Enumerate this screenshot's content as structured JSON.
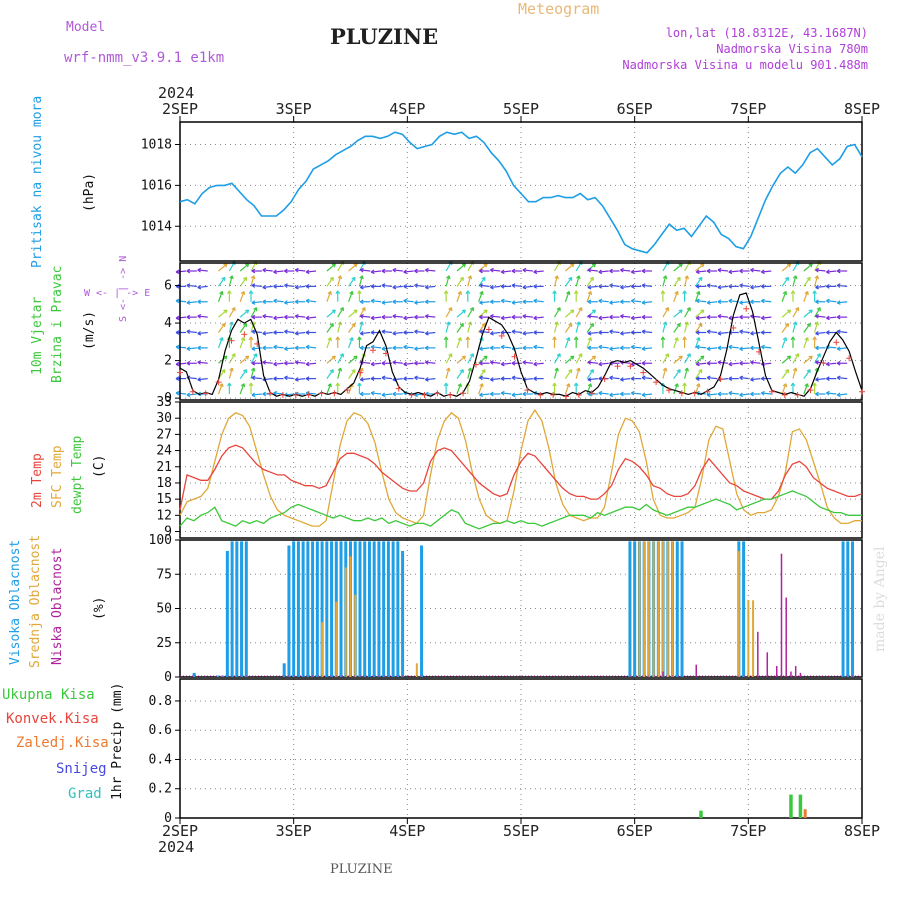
{
  "header": {
    "model_label": "Model",
    "model_name": "wrf-nmm_v3.9.1 e1km",
    "title": "PLUZINE",
    "product": "Meteogram",
    "coords": "lon,lat (18.8312E, 43.1687N)",
    "altitude": "Nadmorska Visina 780m",
    "model_altitude": "Nadmorska Visina u modelu 901.488m"
  },
  "footer": {
    "station": "PLUZINE"
  },
  "watermark": "made by Angel",
  "colors": {
    "pressure": "#1e9ee6",
    "t2m": "#e8453c",
    "sfc": "#e0a838",
    "dewpt": "#3cc83c",
    "high_cloud": "#1e9ee6",
    "mid_cloud": "#e0a838",
    "low_cloud": "#b0229c",
    "model_text": "#b05ad8",
    "header_text": "#b040d8",
    "product_text": "#e8b878"
  },
  "time_axis": {
    "year": "2024",
    "days": [
      "2SEP",
      "3SEP",
      "4SEP",
      "5SEP",
      "6SEP",
      "7SEP",
      "8SEP"
    ]
  },
  "panel_labels": {
    "pressure": {
      "name": "Pritisak na nivou mora",
      "unit": "(hPa)"
    },
    "wind": {
      "line1": "10m Vjetar",
      "line2": "Brzina i Pravac",
      "unit": "(m/s)",
      "compass": "W <- | -> E",
      "compass_v": "S <- | -> N"
    },
    "temp": {
      "t2m": "2m Temp",
      "sfc": "SFC Temp",
      "dewpt": "dewpt Temp",
      "unit": "(C)"
    },
    "cloud": {
      "high": "Visoka Oblacnost",
      "mid": "Srednja Oblacnost",
      "low": "Niska Oblacnost",
      "unit": "(%)"
    },
    "precip": {
      "total": "Ukupna Kisa",
      "conv": "Konvek.Kisa",
      "frozen": "Zaledj.Kisa",
      "snow": "Snijeg",
      "hail": "Grad",
      "unit": "1hr Precip (mm)"
    }
  },
  "chart_data": [
    {
      "type": "line",
      "panel": "pressure",
      "yticks": [
        1014,
        1016,
        1018
      ],
      "ylim": [
        1012.3,
        1019.1
      ],
      "xlim": [
        0,
        144
      ],
      "series": [
        {
          "values": [
            1015.2,
            1015.3,
            1015.1,
            1015.6,
            1015.9,
            1016.0,
            1016.0,
            1016.1,
            1015.7,
            1015.3,
            1015.0,
            1014.5,
            1014.5,
            1014.5,
            1014.8,
            1015.2,
            1015.8,
            1016.2,
            1016.8,
            1017.0,
            1017.2,
            1017.5,
            1017.7,
            1017.9,
            1018.2,
            1018.4,
            1018.4,
            1018.3,
            1018.4,
            1018.6,
            1018.5,
            1018.1,
            1017.8,
            1017.9,
            1018.0,
            1018.4,
            1018.6,
            1018.5,
            1018.6,
            1018.3,
            1018.4,
            1018.1,
            1017.6,
            1017.2,
            1016.7,
            1016.0,
            1015.6,
            1015.2,
            1015.2,
            1015.4,
            1015.4,
            1015.5,
            1015.4,
            1015.4,
            1015.6,
            1015.3,
            1015.4,
            1015.0,
            1014.4,
            1013.8,
            1013.1,
            1012.9,
            1012.8,
            1012.7,
            1013.1,
            1013.6,
            1014.1,
            1013.8,
            1013.9,
            1013.5,
            1014.0,
            1014.5,
            1014.2,
            1013.6,
            1013.4,
            1013.0,
            1012.9,
            1013.5,
            1014.4,
            1015.3,
            1016.0,
            1016.6,
            1016.9,
            1016.6,
            1017.0,
            1017.6,
            1017.8,
            1017.4,
            1017.0,
            1017.3,
            1017.9,
            1018.0,
            1017.4
          ]
        }
      ]
    },
    {
      "type": "line",
      "panel": "wind",
      "yticks": [
        0,
        2,
        4,
        6
      ],
      "ylim": [
        -0.1,
        7.2
      ],
      "xlim": [
        0,
        144
      ],
      "series": [
        {
          "values": [
            1.6,
            1.4,
            0.4,
            0.2,
            0.3,
            0.2,
            1.0,
            2.5,
            3.6,
            4.2,
            4.0,
            4.2,
            3.4,
            1.2,
            0.3,
            0.1,
            0.2,
            0.1,
            0.2,
            0.1,
            0.2,
            0.1,
            0.3,
            0.2,
            0.3,
            0.2,
            0.5,
            0.8,
            1.6,
            2.8,
            3.0,
            3.6,
            2.8,
            1.4,
            0.6,
            0.3,
            0.2,
            0.3,
            0.2,
            0.1,
            0.3,
            0.1,
            0.2,
            0.1,
            0.3,
            0.9,
            2.1,
            3.4,
            4.3,
            4.1,
            3.9,
            3.4,
            2.6,
            1.4,
            0.5,
            0.3,
            0.2,
            0.3,
            0.2,
            0.2,
            0.1,
            0.3,
            0.2,
            0.4,
            0.3,
            0.6,
            1.2,
            1.9,
            2.0,
            1.9,
            2.0,
            1.8,
            1.6,
            1.3,
            1.0,
            0.7,
            0.5,
            0.4,
            0.3,
            0.2,
            0.3,
            0.2,
            0.4,
            0.6,
            1.2,
            2.6,
            4.4,
            5.5,
            5.6,
            4.6,
            2.9,
            1.2,
            0.4,
            0.3,
            0.2,
            0.3,
            0.2,
            0.1,
            0.5,
            1.4,
            2.2,
            3.0,
            3.5,
            3.1,
            2.5,
            1.4,
            0.4
          ]
        }
      ]
    },
    {
      "type": "line",
      "panel": "temp",
      "yticks": [
        9,
        12,
        15,
        18,
        21,
        24,
        27,
        30,
        33
      ],
      "ylim": [
        7.8,
        33
      ],
      "xlim": [
        0,
        144
      ],
      "series": [
        {
          "values": [
            13.0,
            19.5,
            19.0,
            18.5,
            18.5,
            20.5,
            23.0,
            24.5,
            25.0,
            24.5,
            23.0,
            21.5,
            20.5,
            20.0,
            19.5,
            19.5,
            18.5,
            18.0,
            17.5,
            17.5,
            17.0,
            17.5,
            20.0,
            22.5,
            23.5,
            23.5,
            23.0,
            22.5,
            21.5,
            20.0,
            19.0,
            18.0,
            17.0,
            16.5,
            16.5,
            18.0,
            22.0,
            24.0,
            24.5,
            24.0,
            22.5,
            21.0,
            19.5,
            18.0,
            17.0,
            16.0,
            15.5,
            16.0,
            19.5,
            22.0,
            23.5,
            23.0,
            21.5,
            20.0,
            18.5,
            17.0,
            16.0,
            15.5,
            15.5,
            15.0,
            15.0,
            16.0,
            17.5,
            20.5,
            22.5,
            22.0,
            21.0,
            19.5,
            17.5,
            17.0,
            16.0,
            15.5,
            15.5,
            16.0,
            17.5,
            20.5,
            22.5,
            21.0,
            19.5,
            18.0,
            17.5,
            16.5,
            16.0,
            15.5,
            15.0,
            15.0,
            16.5,
            19.5,
            21.5,
            22.0,
            21.0,
            19.0,
            18.0,
            17.0,
            16.5,
            16.0,
            15.5,
            15.5,
            16.0
          ]
        },
        {
          "values": [
            12.0,
            14.5,
            15.0,
            15.5,
            17.0,
            22.0,
            27.0,
            30.0,
            31.0,
            30.5,
            28.5,
            24.0,
            19.5,
            15.5,
            13.0,
            12.0,
            11.5,
            11.0,
            10.5,
            10.0,
            10.0,
            11.0,
            18.0,
            25.0,
            29.5,
            31.0,
            30.5,
            29.0,
            25.5,
            20.0,
            15.0,
            12.5,
            11.5,
            11.0,
            10.5,
            12.0,
            19.5,
            26.0,
            29.5,
            31.0,
            30.0,
            26.0,
            20.0,
            15.0,
            12.0,
            11.0,
            10.5,
            11.0,
            16.5,
            24.0,
            29.5,
            31.5,
            29.5,
            24.5,
            18.0,
            14.0,
            12.0,
            11.5,
            11.0,
            11.5,
            11.5,
            13.5,
            20.0,
            27.0,
            30.0,
            29.5,
            27.5,
            22.0,
            15.0,
            12.0,
            11.5,
            11.5,
            12.0,
            12.5,
            13.5,
            19.0,
            26.0,
            28.5,
            28.0,
            22.0,
            16.0,
            13.0,
            12.0,
            12.5,
            12.5,
            13.0,
            15.5,
            20.0,
            27.5,
            28.0,
            26.0,
            22.0,
            18.0,
            13.5,
            11.5,
            10.5,
            10.5,
            11.0,
            11.0
          ]
        },
        {
          "values": [
            10.0,
            11.5,
            11.0,
            12.0,
            12.5,
            13.5,
            11.0,
            10.5,
            10.0,
            11.0,
            10.5,
            11.0,
            10.5,
            11.5,
            12.0,
            12.5,
            13.5,
            14.0,
            13.5,
            13.0,
            12.5,
            12.0,
            11.5,
            12.0,
            11.5,
            11.0,
            11.0,
            11.5,
            11.0,
            11.5,
            10.5,
            11.0,
            10.5,
            10.0,
            10.5,
            10.5,
            10.0,
            11.0,
            12.0,
            13.0,
            12.5,
            10.5,
            10.0,
            9.5,
            10.0,
            10.5,
            10.5,
            11.0,
            10.5,
            11.0,
            10.5,
            10.5,
            10.0,
            10.5,
            11.0,
            11.5,
            12.0,
            12.0,
            12.0,
            11.5,
            12.5,
            12.0,
            12.5,
            13.0,
            13.5,
            13.5,
            13.0,
            14.0,
            13.0,
            12.5,
            12.0,
            12.5,
            13.0,
            13.5,
            13.5,
            14.0,
            14.5,
            15.0,
            14.5,
            14.0,
            13.0,
            13.5,
            14.0,
            14.5,
            15.0,
            15.0,
            15.5,
            16.0,
            16.5,
            16.0,
            15.5,
            14.5,
            13.5,
            13.0,
            12.5,
            12.5,
            12.0,
            12.0,
            12.0
          ]
        }
      ]
    },
    {
      "type": "bar",
      "panel": "cloud",
      "yticks": [
        0,
        25,
        50,
        75,
        100
      ],
      "ylim": [
        0,
        100
      ],
      "xlim": [
        0,
        144
      ],
      "series": [
        {
          "name_ref": "high",
          "x": [
            3,
            8,
            9,
            10,
            11,
            12,
            13,
            14,
            22,
            23,
            24,
            25,
            26,
            27,
            28,
            29,
            30,
            31,
            32,
            33,
            34,
            35,
            36,
            37,
            38,
            39,
            40,
            41,
            42,
            43,
            44,
            45,
            46,
            47,
            51,
            95,
            96,
            97,
            98,
            99,
            100,
            101,
            102,
            103,
            104,
            105,
            106,
            118,
            119,
            140,
            141,
            142
          ],
          "values": [
            3,
            1,
            1,
            92,
            99,
            99,
            99,
            99,
            10,
            96,
            99,
            99,
            99,
            99,
            99,
            99,
            99,
            99,
            99,
            99,
            99,
            99,
            99,
            99,
            99,
            99,
            99,
            99,
            99,
            99,
            99,
            99,
            99,
            92,
            96,
            99,
            99,
            99,
            99,
            99,
            99,
            99,
            99,
            99,
            99,
            99,
            99,
            99,
            99,
            99,
            99,
            99
          ]
        },
        {
          "name_ref": "mid",
          "x": [
            30,
            33,
            35,
            36,
            37,
            50,
            97,
            98,
            99,
            100,
            101,
            102,
            103,
            104,
            118,
            120,
            121
          ],
          "values": [
            40,
            55,
            80,
            88,
            60,
            10,
            99,
            99,
            99,
            99,
            99,
            99,
            99,
            99,
            92,
            56,
            56
          ]
        },
        {
          "name_ref": "low",
          "x": [
            102,
            109,
            122,
            124,
            126,
            127,
            128,
            129,
            130,
            131
          ],
          "values": [
            4,
            9,
            33,
            18,
            8,
            90,
            58,
            4,
            8,
            3
          ]
        }
      ]
    },
    {
      "type": "bar",
      "panel": "precip",
      "yticks": [
        0,
        0.2,
        0.4,
        0.6,
        0.8
      ],
      "ylim": [
        0,
        0.95
      ],
      "xlim": [
        0,
        144
      ],
      "series": [
        {
          "name_ref": "total",
          "x": [
            110,
            129,
            131
          ],
          "values": [
            0.05,
            0.16,
            0.16
          ]
        },
        {
          "name_ref": "frozen",
          "x": [
            132
          ],
          "values": [
            0.06
          ]
        }
      ]
    }
  ]
}
